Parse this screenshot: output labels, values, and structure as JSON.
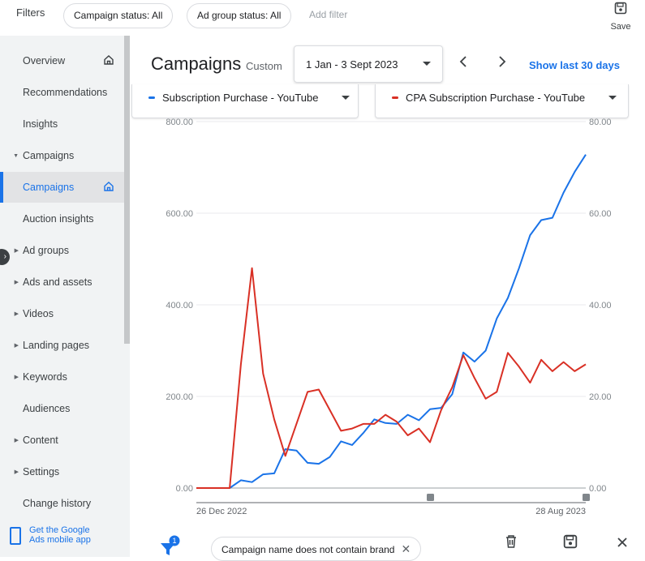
{
  "filterbar": {
    "label": "Filters",
    "chips": [
      "Campaign status: All",
      "Ad group status: All"
    ],
    "add_filter": "Add filter",
    "save_label": "Save"
  },
  "sidebar": {
    "items": [
      {
        "label": "Overview",
        "caret": "",
        "home": true
      },
      {
        "label": "Recommendations",
        "caret": ""
      },
      {
        "label": "Insights",
        "caret": ""
      },
      {
        "label": "Campaigns",
        "caret": "▼"
      },
      {
        "label": "Campaigns",
        "caret": "",
        "home": true,
        "active": true
      },
      {
        "label": "Auction insights",
        "caret": ""
      },
      {
        "label": "Ad groups",
        "caret": "▶"
      },
      {
        "label": "Ads and assets",
        "caret": "▶"
      },
      {
        "label": "Videos",
        "caret": "▶"
      },
      {
        "label": "Landing pages",
        "caret": "▶"
      },
      {
        "label": "Keywords",
        "caret": "▶"
      },
      {
        "label": "Audiences",
        "caret": ""
      },
      {
        "label": "Content",
        "caret": "▶"
      },
      {
        "label": "Settings",
        "caret": "▶"
      },
      {
        "label": "Change history",
        "caret": ""
      }
    ],
    "mobile_app_line1": "Get the Google",
    "mobile_app_line2": "Ads mobile app"
  },
  "header": {
    "title": "Campaigns",
    "custom_label": "Custom",
    "date_range": "1 Jan - 3 Sept 2023",
    "show_last": "Show last 30 days"
  },
  "series_selectors": [
    {
      "name": "Subscription Purchase - YouTube",
      "color": "#1a73e8"
    },
    {
      "name": "CPA Subscription Purchase - YouTube",
      "color": "#d93025"
    }
  ],
  "bottombar": {
    "filter_chip": "Campaign name does not contain brand",
    "filter_count": "1"
  },
  "chart_data": {
    "type": "line",
    "grid": true,
    "y_left": {
      "ticks": [
        "800.00",
        "600.00",
        "400.00",
        "200.00",
        "0.00"
      ],
      "range": [
        0,
        800
      ]
    },
    "y_right": {
      "ticks": [
        "80.00",
        "60.00",
        "40.00",
        "20.00",
        "0.00"
      ],
      "range": [
        0,
        80
      ]
    },
    "x_labels": [
      "26 Dec 2022",
      "28 Aug 2023"
    ],
    "series": [
      {
        "name": "Subscription Purchase - YouTube",
        "axis": "left",
        "color": "#1a73e8",
        "values": [
          0,
          0,
          0,
          0,
          17,
          13,
          30,
          32,
          85,
          82,
          55,
          53,
          68,
          102,
          94,
          120,
          150,
          142,
          140,
          160,
          148,
          172,
          175,
          205,
          296,
          276,
          300,
          370,
          415,
          480,
          552,
          585,
          590,
          645,
          690,
          728
        ]
      },
      {
        "name": "CPA Subscription Purchase - YouTube",
        "axis": "right",
        "color": "#d93025",
        "values": [
          0,
          0,
          0,
          0,
          27,
          48,
          25,
          15,
          7,
          14,
          21,
          21.5,
          17,
          12.5,
          13,
          14,
          14,
          16,
          14.5,
          11.5,
          13,
          10,
          17,
          22,
          29,
          24,
          19.5,
          21,
          29.5,
          26.5,
          23,
          28,
          25.5,
          27.5,
          25.5,
          27
        ]
      }
    ]
  }
}
